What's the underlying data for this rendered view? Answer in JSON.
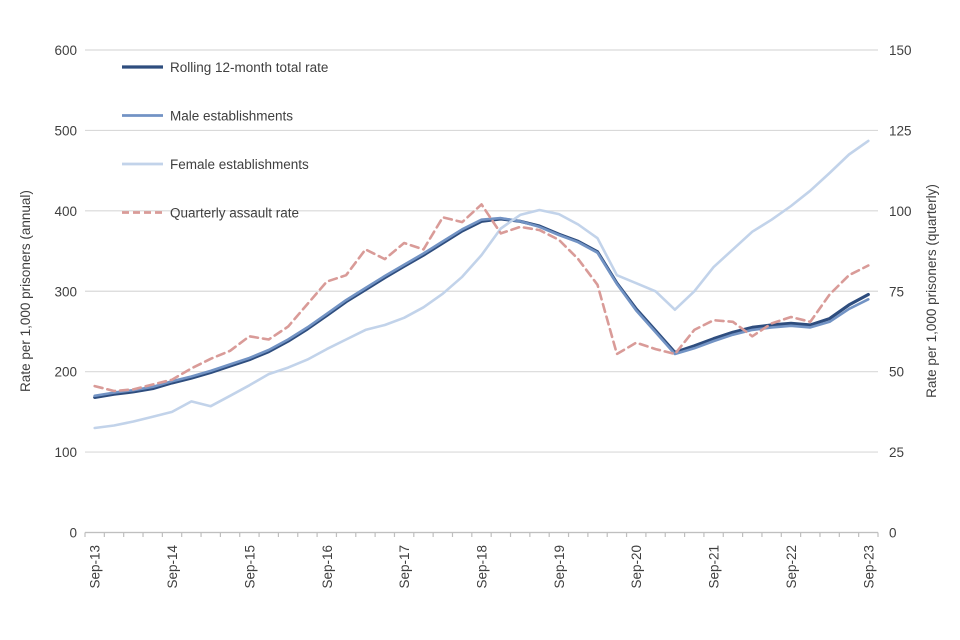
{
  "chart_data": {
    "type": "line",
    "title": "",
    "x_tick_labels": [
      "Sep-13",
      "Sep-14",
      "Sep-15",
      "Sep-16",
      "Sep-17",
      "Sep-18",
      "Sep-19",
      "Sep-20",
      "Sep-21",
      "Sep-22",
      "Sep-23"
    ],
    "quarters": [
      "Sep-13",
      "Dec-13",
      "Mar-14",
      "Jun-14",
      "Sep-14",
      "Dec-14",
      "Mar-15",
      "Jun-15",
      "Sep-15",
      "Dec-15",
      "Mar-16",
      "Jun-16",
      "Sep-16",
      "Dec-16",
      "Mar-17",
      "Jun-17",
      "Sep-17",
      "Dec-17",
      "Mar-18",
      "Jun-18",
      "Sep-18",
      "Dec-18",
      "Mar-19",
      "Jun-19",
      "Sep-19",
      "Dec-19",
      "Mar-20",
      "Jun-20",
      "Sep-20",
      "Dec-20",
      "Mar-21",
      "Jun-21",
      "Sep-21",
      "Dec-21",
      "Mar-22",
      "Jun-22",
      "Sep-22",
      "Dec-22",
      "Mar-23",
      "Jun-23",
      "Sep-23"
    ],
    "left_axis": {
      "title": "Rate per 1,000 prisoners (annual)",
      "ticks": [
        0,
        100,
        200,
        300,
        400,
        500,
        600
      ],
      "min": 0,
      "max": 600
    },
    "right_axis": {
      "title": "Rate per 1,000 prisoners (quarterly)",
      "ticks": [
        0,
        25,
        50,
        75,
        100,
        125,
        150
      ],
      "min": 0,
      "max": 150
    },
    "series": [
      {
        "name": "Rolling 12-month total rate",
        "axis": "left",
        "color": "#2E4D7E",
        "width": 3.2,
        "dash": null,
        "values": [
          168,
          172,
          175,
          179,
          186,
          192,
          199,
          207,
          215,
          225,
          238,
          253,
          270,
          287,
          302,
          317,
          331,
          345,
          360,
          375,
          387,
          390,
          387,
          381,
          371,
          362,
          349,
          310,
          278,
          251,
          224,
          232,
          241,
          249,
          255,
          258,
          260,
          258,
          266,
          283,
          296
        ]
      },
      {
        "name": "Male establishments",
        "axis": "left",
        "color": "#7293C4",
        "width": 2.6,
        "dash": null,
        "values": [
          170,
          174,
          177,
          181,
          188,
          194,
          201,
          209,
          217,
          227,
          240,
          255,
          272,
          289,
          304,
          319,
          333,
          347,
          362,
          377,
          389,
          391,
          387,
          380,
          370,
          361,
          348,
          309,
          276,
          249,
          222,
          229,
          238,
          246,
          252,
          255,
          257,
          255,
          262,
          278,
          290
        ]
      },
      {
        "name": "Female establishments",
        "axis": "left",
        "color": "#C2D3EA",
        "width": 2.6,
        "dash": null,
        "values": [
          130,
          133,
          138,
          144,
          150,
          163,
          157,
          170,
          183,
          197,
          205,
          215,
          228,
          240,
          252,
          258,
          267,
          280,
          297,
          318,
          345,
          378,
          395,
          401,
          396,
          383,
          366,
          320,
          310,
          300,
          277,
          300,
          330,
          352,
          374,
          389,
          406,
          425,
          447,
          470,
          487
        ]
      },
      {
        "name": "Quarterly assault rate",
        "axis": "right",
        "color": "#D99B98",
        "width": 2.6,
        "dash": "8,5",
        "values": [
          45.5,
          44,
          44.5,
          46,
          47.5,
          51,
          54,
          56.5,
          61,
          60,
          64,
          71,
          78,
          80,
          88,
          85,
          90,
          88,
          98,
          96.5,
          102,
          93,
          95,
          94,
          91,
          85,
          77,
          55.5,
          59,
          57,
          55.5,
          63,
          66,
          65.5,
          61,
          65,
          67,
          65.5,
          74,
          80,
          83
        ]
      }
    ],
    "legend": {
      "position": "top-left-inside",
      "entries": [
        "Rolling 12-month total rate",
        "Male establishments",
        "Female establishments",
        "Quarterly assault rate"
      ]
    },
    "grid": {
      "horizontal": true,
      "vertical": false,
      "color": "#D9D9D9"
    },
    "axis_line_color": "#BFBFBF",
    "text_color": "#3F3F3F",
    "background": "#FFFFFF"
  }
}
